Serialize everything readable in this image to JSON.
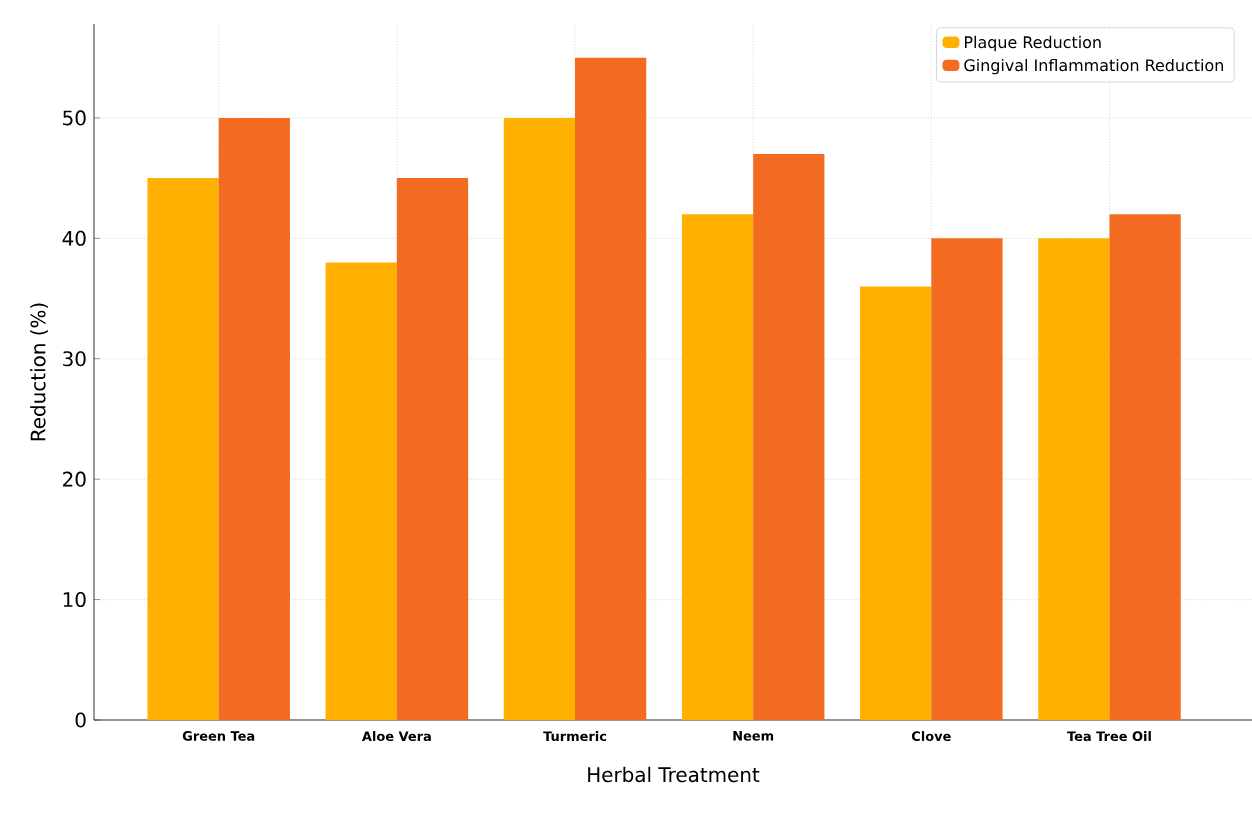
{
  "chart_data": {
    "type": "bar",
    "xlabel": "Herbal Treatment",
    "ylabel": "Reduction (%)",
    "categories": [
      "Green Tea",
      "Aloe Vera",
      "Turmeric",
      "Neem",
      "Clove",
      "Tea Tree Oil"
    ],
    "series": [
      {
        "name": "Plaque Reduction",
        "color": "#ffb000",
        "values": [
          45,
          38,
          50,
          42,
          36,
          40
        ]
      },
      {
        "name": "Gingival Inflammation Reduction",
        "color": "#f26b21",
        "values": [
          50,
          45,
          55,
          47,
          40,
          42
        ]
      }
    ],
    "ylim": [
      0,
      57.8
    ],
    "yticks": [
      0,
      10,
      20,
      30,
      40,
      50
    ],
    "grid": true,
    "legend": "top right"
  }
}
